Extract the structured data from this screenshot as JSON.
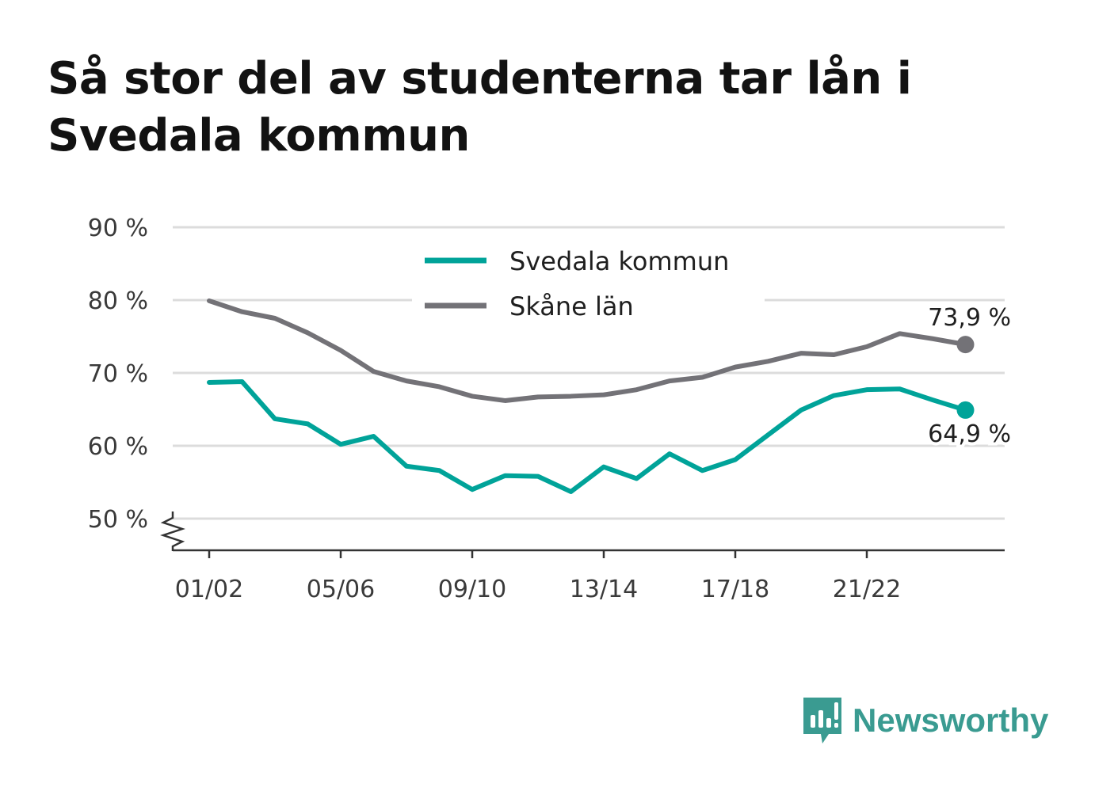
{
  "title": "Så stor del av studenterna tar lån i Svedala kommun",
  "brand": {
    "name": "Newsworthy",
    "icon": "newsworthy-logo-icon",
    "color": "#3a9b91"
  },
  "chart_data": {
    "type": "line",
    "title": "Så stor del av studenterna tar lån i Svedala kommun",
    "xlabel": "",
    "ylabel": "",
    "ylim": [
      45.5,
      90
    ],
    "yticks": [
      {
        "value": 50,
        "label": "50 %"
      },
      {
        "value": 60,
        "label": "60 %"
      },
      {
        "value": 70,
        "label": "70 %"
      },
      {
        "value": 80,
        "label": "80 %"
      },
      {
        "value": 90,
        "label": "90 %"
      }
    ],
    "axis_break": true,
    "grid": true,
    "legend_position": "top-center",
    "x": [
      "01/02",
      "02/03",
      "03/04",
      "04/05",
      "05/06",
      "06/07",
      "07/08",
      "08/09",
      "09/10",
      "10/11",
      "11/12",
      "12/13",
      "13/14",
      "14/15",
      "15/16",
      "16/17",
      "17/18",
      "18/19",
      "19/20",
      "20/21",
      "21/22",
      "22/23",
      "23/24",
      "24/25"
    ],
    "xticks": [
      "01/02",
      "05/06",
      "09/10",
      "13/14",
      "17/18",
      "21/22"
    ],
    "series": [
      {
        "name": "Svedala kommun",
        "color": "#00a399",
        "values": [
          68.7,
          68.8,
          63.7,
          63.0,
          60.2,
          61.3,
          57.2,
          56.6,
          54.0,
          55.9,
          55.8,
          53.7,
          57.1,
          55.5,
          58.9,
          56.6,
          58.1,
          61.5,
          64.9,
          66.9,
          67.7,
          67.8,
          66.3,
          64.9
        ],
        "end_label": "64,9 %"
      },
      {
        "name": "Skåne län",
        "color": "#737277",
        "values": [
          79.9,
          78.4,
          77.5,
          75.5,
          73.1,
          70.2,
          68.9,
          68.1,
          66.8,
          66.2,
          66.7,
          66.8,
          67.0,
          67.7,
          68.9,
          69.4,
          70.8,
          71.6,
          72.7,
          72.5,
          73.6,
          75.4,
          74.7,
          73.9
        ],
        "end_label": "73,9 %"
      }
    ]
  }
}
